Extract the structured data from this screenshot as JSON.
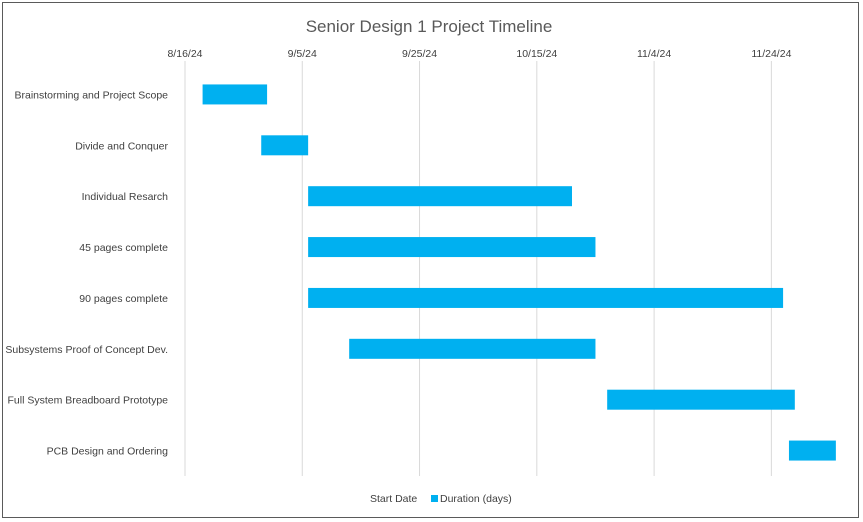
{
  "chart_data": {
    "type": "bar",
    "orientation": "horizontal",
    "stacked": true,
    "title": "Senior Design 1 Project Timeline",
    "xlabel": "",
    "ylabel": "",
    "x_axis_type": "date",
    "xlim": [
      "2024-08-16",
      "2024-12-04"
    ],
    "x_tick_labels": [
      "8/16/24",
      "9/5/24",
      "9/25/24",
      "10/15/24",
      "11/4/24",
      "11/24/24"
    ],
    "x_ticks": [
      "2024-08-16",
      "2024-09-05",
      "2024-09-25",
      "2024-10-15",
      "2024-11-04",
      "2024-11-24"
    ],
    "grid": true,
    "legend_position": "bottom",
    "categories": [
      "Brainstorming and Project Scope",
      "Divide and Conquer",
      "Individual Resarch",
      "45 pages complete",
      "90 pages complete",
      "Subsystems Proof of Concept Dev.",
      "Full System Breadboard Prototype",
      "PCB Design and Ordering"
    ],
    "series": [
      {
        "name": "Start Date",
        "color": "none",
        "values": [
          "2024-08-19",
          "2024-08-29",
          "2024-09-06",
          "2024-09-06",
          "2024-09-06",
          "2024-09-13",
          "2024-10-27",
          "2024-11-27"
        ]
      },
      {
        "name": "Duration (days)",
        "color": "#00b0f0",
        "values": [
          11,
          8,
          45,
          49,
          81,
          42,
          32,
          8
        ]
      }
    ]
  }
}
